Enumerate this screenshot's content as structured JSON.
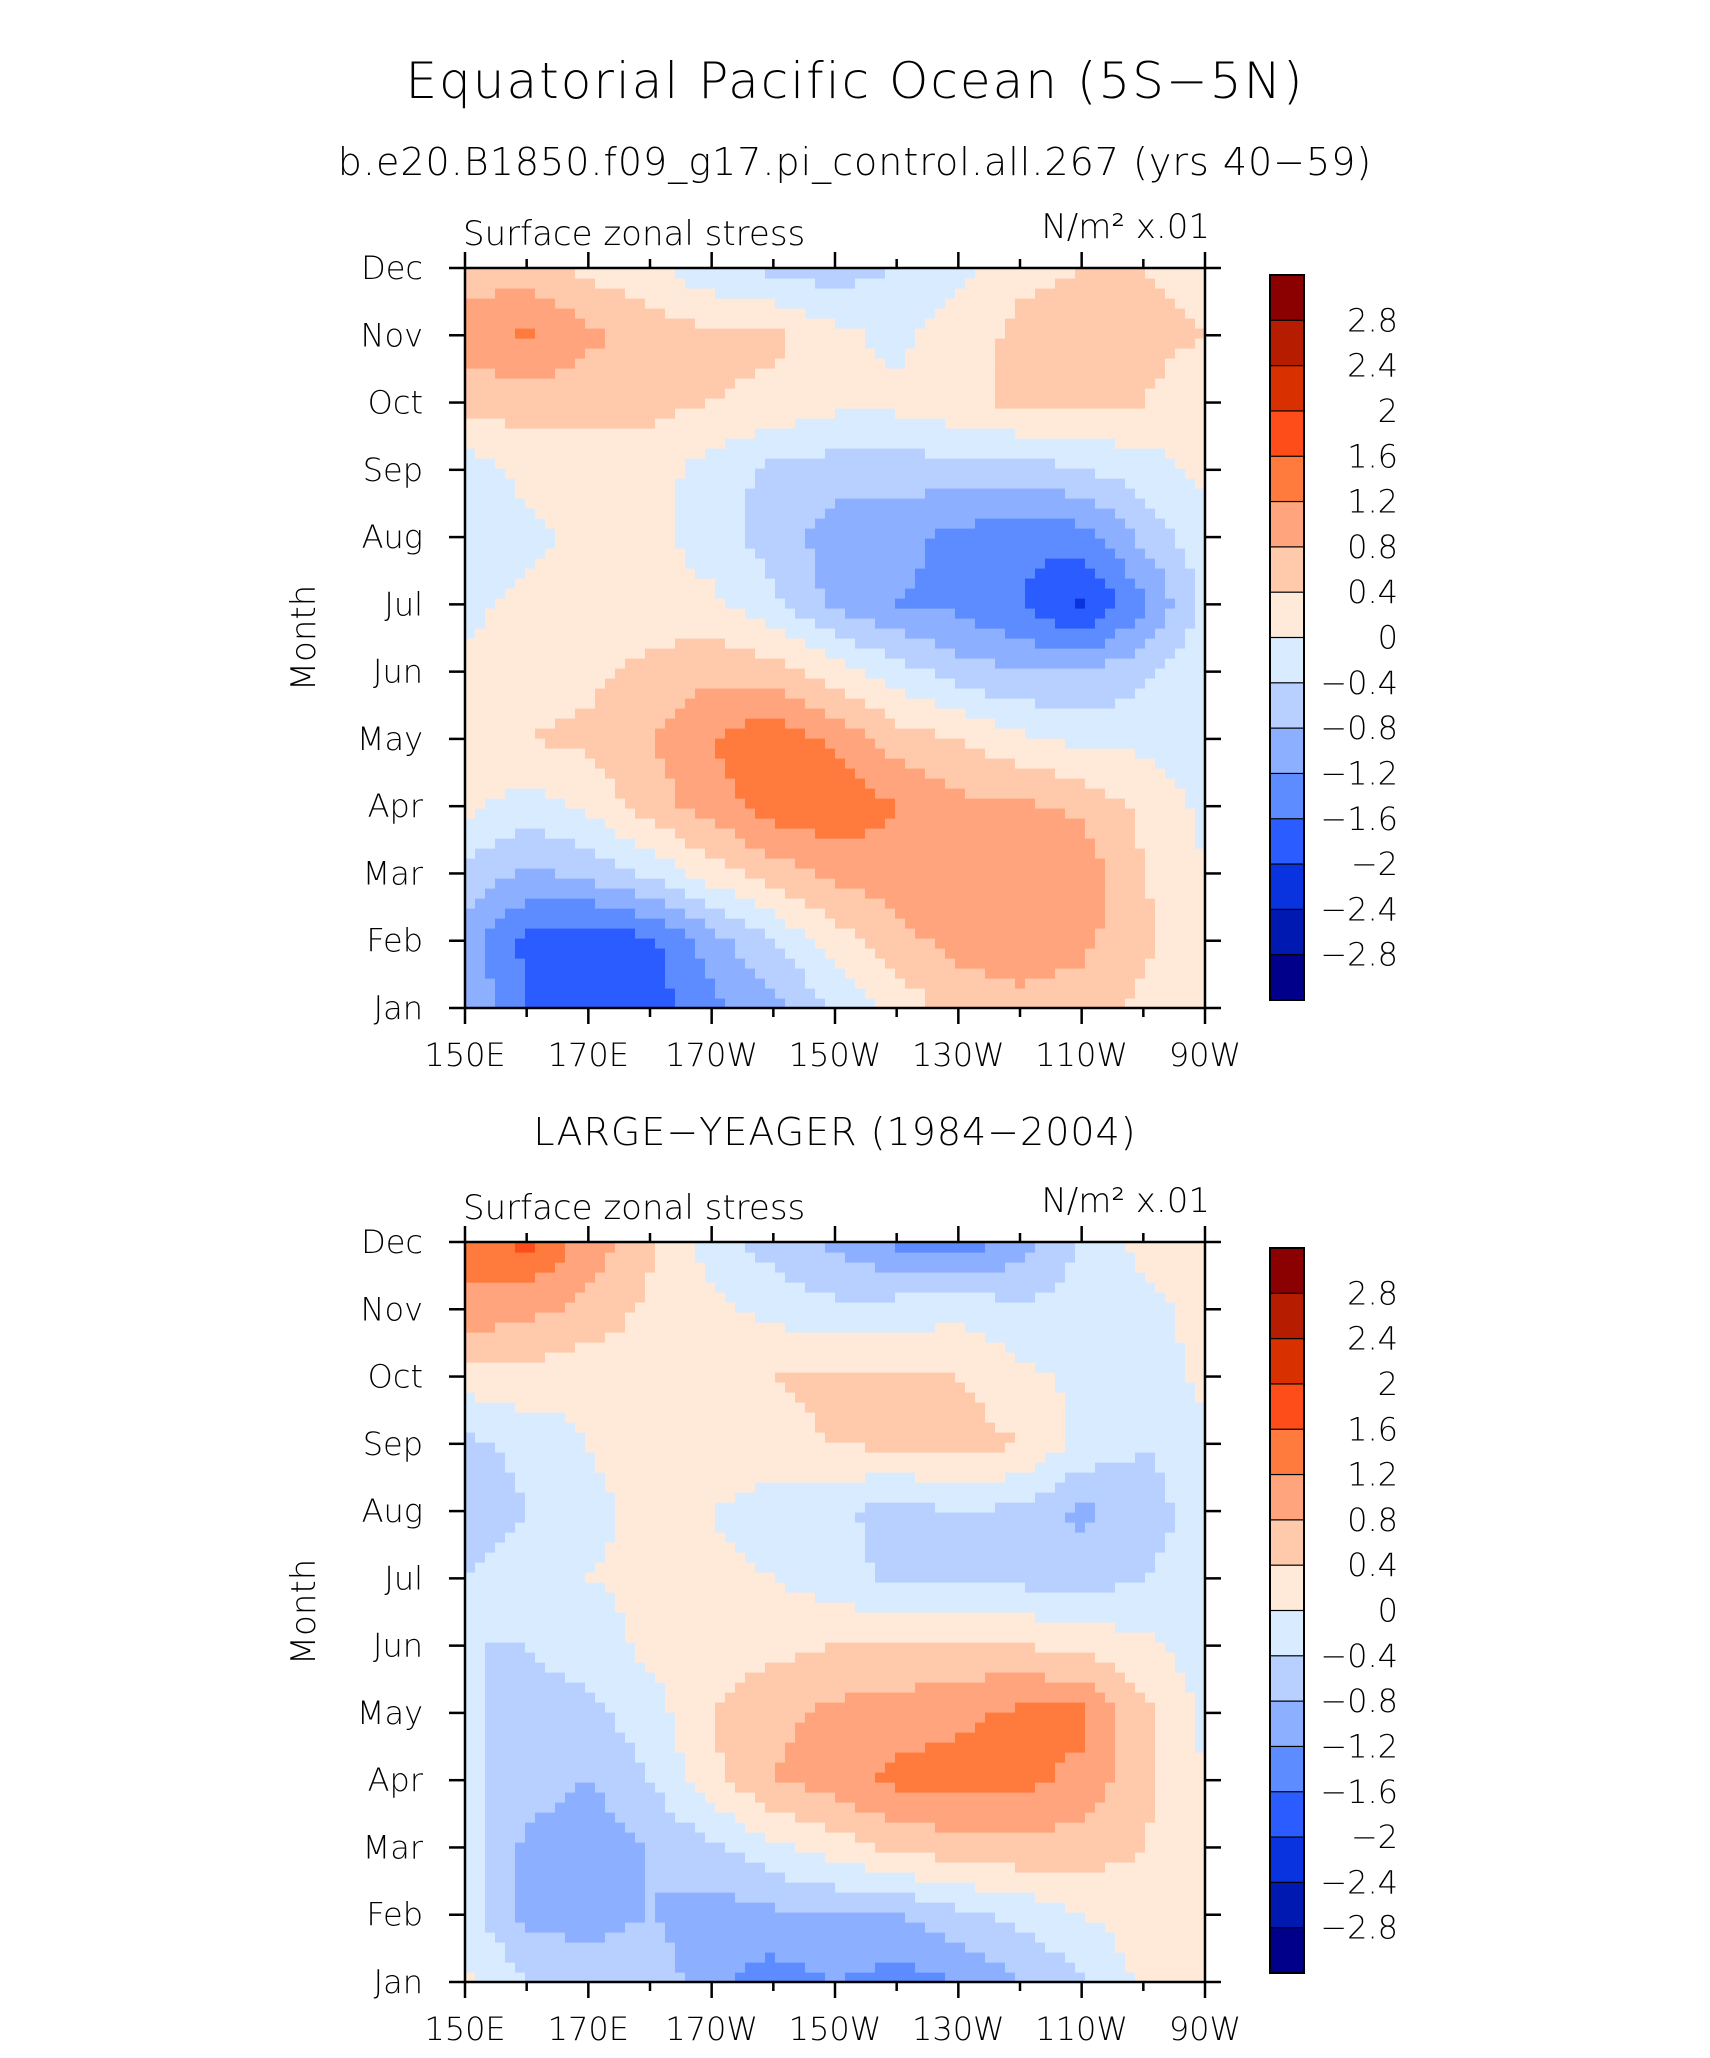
{
  "title": "Equatorial Pacific Ocean (5S−5N)",
  "subtitle": "b.e20.B1850.f09_g17.pi_control.all.267 (yrs 40−59)",
  "colorbar": {
    "labels": [
      "2.8",
      "2.4",
      "2",
      "1.6",
      "1.2",
      "0.8",
      "0.4",
      "0",
      "−0.4",
      "−0.8",
      "−1.2",
      "−1.6",
      "−2",
      "−2.4",
      "−2.8"
    ],
    "colors": [
      "#8b0000",
      "#b51c00",
      "#d93000",
      "#ff4d1a",
      "#ff7a3d",
      "#ffa47c",
      "#ffc9ab",
      "#ffeada",
      "#d9ebff",
      "#b8d0ff",
      "#8cb0ff",
      "#5c8cff",
      "#2b5cff",
      "#0a33e0",
      "#0019b0",
      "#00008b"
    ]
  },
  "chart_data": [
    {
      "type": "heatmap",
      "panel_title": "",
      "left_label": "Surface zonal stress",
      "right_label": "N/m² x.01",
      "xlabel": "",
      "ylabel": "Month",
      "x_ticks": [
        "150E",
        "170E",
        "170W",
        "150W",
        "130W",
        "110W",
        "90W"
      ],
      "x_values_deg_east": [
        150,
        170,
        190,
        210,
        230,
        250,
        270
      ],
      "y_ticks": [
        "Jan",
        "Feb",
        "Mar",
        "Apr",
        "May",
        "Jun",
        "Jul",
        "Aug",
        "Sep",
        "Oct",
        "Nov",
        "Dec"
      ],
      "xlim": [
        150,
        270
      ],
      "ylim": [
        1,
        12
      ],
      "grid_x": [
        150,
        160,
        170,
        180,
        190,
        200,
        210,
        220,
        230,
        240,
        250,
        260,
        270
      ],
      "values": [
        [
          -0.8,
          -1.6,
          -1.9,
          -1.8,
          -1.3,
          -0.9,
          -0.4,
          0.1,
          0.6,
          0.7,
          0.6,
          0.3,
          0.1
        ],
        [
          -1.0,
          -1.7,
          -1.9,
          -1.7,
          -1.0,
          -0.4,
          0.2,
          0.7,
          0.9,
          1.0,
          0.9,
          0.5,
          0.1
        ],
        [
          -0.5,
          -0.9,
          -0.7,
          -0.3,
          0.2,
          0.6,
          0.9,
          1.0,
          1.1,
          1.1,
          1.1,
          0.4,
          0.0
        ],
        [
          0.1,
          -0.2,
          0.1,
          0.6,
          1.0,
          1.4,
          1.5,
          1.2,
          0.9,
          0.9,
          0.7,
          0.3,
          -0.1
        ],
        [
          0.3,
          0.4,
          0.5,
          0.8,
          1.2,
          1.5,
          1.1,
          0.6,
          0.4,
          0.1,
          -0.1,
          -0.1,
          -0.2
        ],
        [
          0.1,
          0.2,
          0.3,
          0.5,
          0.7,
          0.6,
          0.2,
          -0.2,
          -0.6,
          -0.8,
          -0.8,
          -0.5,
          -0.1
        ],
        [
          -0.1,
          0.1,
          0.2,
          0.2,
          0.1,
          -0.3,
          -0.9,
          -1.2,
          -1.3,
          -1.6,
          -2.1,
          -1.3,
          -0.3
        ],
        [
          -0.3,
          -0.1,
          0.1,
          0.1,
          -0.2,
          -0.6,
          -1.0,
          -1.1,
          -1.3,
          -1.5,
          -1.4,
          -0.7,
          -0.1
        ],
        [
          -0.2,
          0.1,
          0.2,
          0.2,
          -0.2,
          -0.5,
          -0.6,
          -0.6,
          -0.6,
          -0.6,
          -0.4,
          -0.2,
          0.1
        ],
        [
          0.5,
          0.6,
          0.5,
          0.5,
          0.4,
          0.3,
          0.1,
          0.1,
          0.3,
          0.5,
          0.5,
          0.4,
          0.2
        ],
        [
          1.0,
          1.3,
          0.9,
          0.6,
          0.5,
          0.5,
          0.1,
          -0.1,
          0.2,
          0.5,
          0.6,
          0.5,
          0.4
        ],
        [
          0.6,
          0.6,
          0.3,
          0.1,
          -0.3,
          -0.5,
          -0.6,
          -0.4,
          -0.1,
          0.3,
          0.4,
          0.4,
          0.3
        ]
      ]
    },
    {
      "type": "heatmap",
      "panel_title": "LARGE−YEAGER (1984−2004)",
      "left_label": "Surface zonal stress",
      "right_label": "N/m² x.01",
      "xlabel": "",
      "ylabel": "Month",
      "x_ticks": [
        "150E",
        "170E",
        "170W",
        "150W",
        "130W",
        "110W",
        "90W"
      ],
      "x_values_deg_east": [
        150,
        170,
        190,
        210,
        230,
        250,
        270
      ],
      "y_ticks": [
        "Jan",
        "Feb",
        "Mar",
        "Apr",
        "May",
        "Jun",
        "Jul",
        "Aug",
        "Sep",
        "Oct",
        "Nov",
        "Dec"
      ],
      "xlim": [
        150,
        270
      ],
      "ylim": [
        1,
        12
      ],
      "grid_x": [
        150,
        160,
        170,
        180,
        190,
        200,
        210,
        220,
        230,
        240,
        250,
        260,
        270
      ],
      "values": [
        [
          0.1,
          -0.4,
          -0.5,
          -0.5,
          -1.1,
          -1.4,
          -1.2,
          -1.4,
          -1.2,
          -0.8,
          -0.5,
          0.1,
          0.2
        ],
        [
          -0.2,
          -0.9,
          -1.0,
          -0.8,
          -1.0,
          -0.9,
          -0.8,
          -0.8,
          -0.5,
          -0.3,
          0.0,
          0.2,
          0.2
        ],
        [
          -0.2,
          -0.9,
          -1.1,
          -0.8,
          -0.5,
          -0.1,
          0.2,
          0.5,
          0.6,
          0.7,
          0.6,
          0.4,
          0.1
        ],
        [
          -0.3,
          -0.6,
          -0.8,
          -0.4,
          0.3,
          0.8,
          1.0,
          1.3,
          1.4,
          1.3,
          1.1,
          0.5,
          0.0
        ],
        [
          -0.3,
          -0.6,
          -0.5,
          -0.2,
          0.4,
          0.7,
          0.9,
          1.0,
          1.1,
          1.3,
          1.3,
          0.5,
          -0.1
        ],
        [
          -0.4,
          -0.4,
          -0.2,
          0.1,
          0.2,
          0.3,
          0.4,
          0.4,
          0.5,
          0.4,
          0.3,
          0.1,
          -0.2
        ],
        [
          -0.4,
          -0.2,
          0.0,
          0.1,
          0.1,
          0.0,
          -0.2,
          -0.5,
          -0.4,
          -0.5,
          -0.6,
          -0.4,
          -0.2
        ],
        [
          -0.6,
          -0.4,
          -0.1,
          0.1,
          0.0,
          -0.2,
          -0.3,
          -0.6,
          -0.4,
          -0.5,
          -0.9,
          -0.6,
          -0.2
        ],
        [
          -0.5,
          -0.3,
          0.0,
          0.2,
          0.2,
          0.3,
          0.4,
          0.5,
          0.6,
          0.4,
          -0.1,
          -0.4,
          -0.1
        ],
        [
          0.2,
          0.3,
          0.1,
          0.2,
          0.2,
          0.4,
          0.5,
          0.4,
          0.4,
          0.1,
          -0.1,
          -0.2,
          0.1
        ],
        [
          1.1,
          0.9,
          0.7,
          0.3,
          0.1,
          -0.1,
          -0.3,
          -0.2,
          -0.1,
          -0.3,
          -0.3,
          -0.1,
          0.1
        ],
        [
          1.3,
          1.7,
          1.0,
          0.5,
          -0.2,
          -0.6,
          -0.9,
          -1.3,
          -1.5,
          -1.0,
          -0.3,
          0.1,
          0.2
        ]
      ]
    }
  ]
}
